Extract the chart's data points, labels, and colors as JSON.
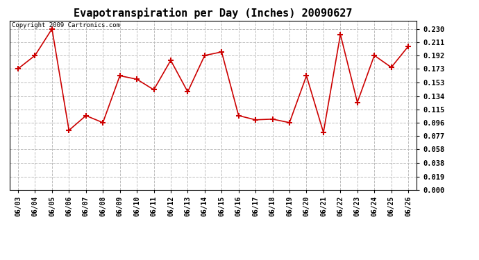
{
  "title": "Evapotranspiration per Day (Inches) 20090627",
  "copyright": "Copyright 2009 Cartronics.com",
  "dates": [
    "06/03",
    "06/04",
    "06/05",
    "06/06",
    "06/07",
    "06/08",
    "06/09",
    "06/10",
    "06/11",
    "06/12",
    "06/13",
    "06/14",
    "06/15",
    "06/16",
    "06/17",
    "06/18",
    "06/19",
    "06/20",
    "06/21",
    "06/22",
    "06/23",
    "06/24",
    "06/25",
    "06/26"
  ],
  "values": [
    0.173,
    0.192,
    0.23,
    0.085,
    0.106,
    0.096,
    0.163,
    0.158,
    0.143,
    0.185,
    0.14,
    0.192,
    0.197,
    0.106,
    0.1,
    0.101,
    0.096,
    0.163,
    0.082,
    0.222,
    0.125,
    0.192,
    0.175,
    0.205
  ],
  "yticks": [
    0.0,
    0.019,
    0.038,
    0.058,
    0.077,
    0.096,
    0.115,
    0.134,
    0.153,
    0.173,
    0.192,
    0.211,
    0.23
  ],
  "line_color": "#cc0000",
  "bg_color": "#ffffff",
  "grid_color": "#bbbbbb",
  "ylim_max": 0.2415,
  "title_fontsize": 11,
  "copyright_fontsize": 6.5,
  "tick_fontsize": 7.5,
  "xtick_fontsize": 7
}
